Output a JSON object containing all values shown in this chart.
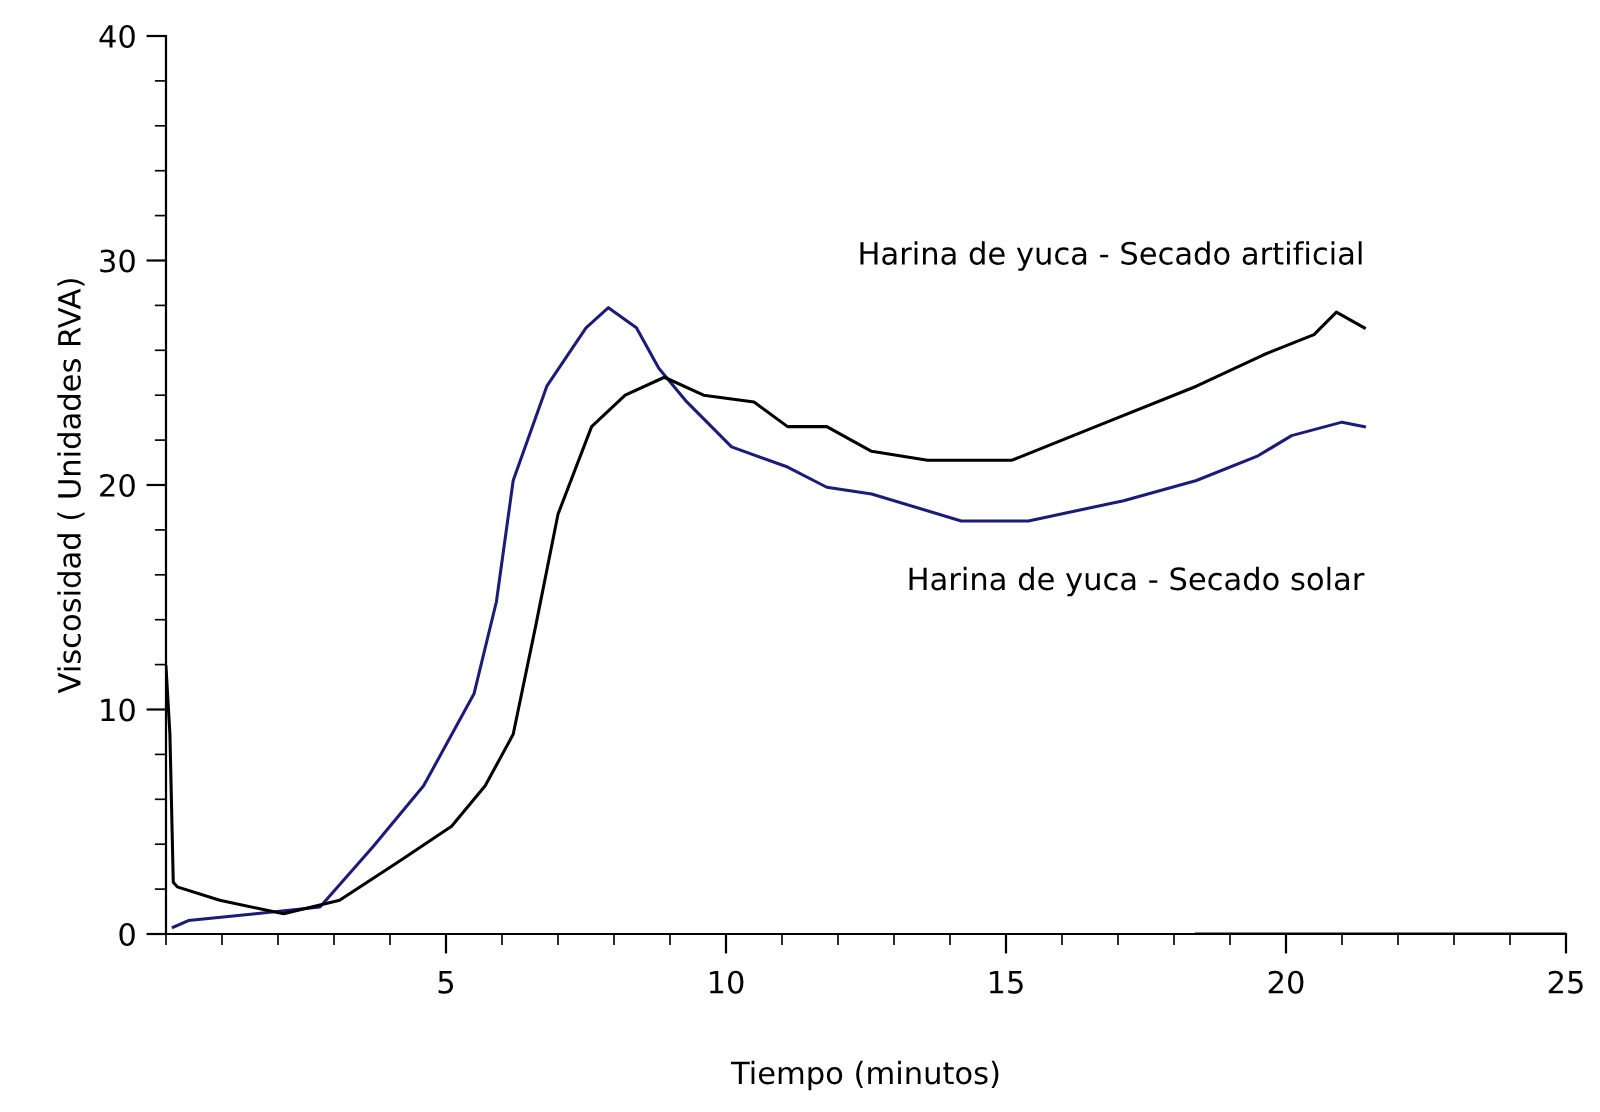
{
  "chart_data": {
    "type": "line",
    "xlabel": "Tiempo (minutos)",
    "ylabel": "Viscosidad ( Unidades RVA)",
    "xlim": [
      0,
      25
    ],
    "ylim": [
      0,
      40
    ],
    "xticks": [
      {
        "value": 0,
        "label": null
      },
      {
        "value": 1,
        "label": null
      },
      {
        "value": 2,
        "label": null
      },
      {
        "value": 3,
        "label": null
      },
      {
        "value": 4,
        "label": null
      },
      5,
      {
        "value": 6,
        "label": null
      },
      {
        "value": 7,
        "label": null
      },
      {
        "value": 8,
        "label": null
      },
      {
        "value": 9,
        "label": null
      },
      10,
      {
        "value": 11,
        "label": null
      },
      {
        "value": 12,
        "label": null
      },
      {
        "value": 13,
        "label": null
      },
      {
        "value": 14,
        "label": null
      },
      15,
      {
        "value": 16,
        "label": null
      },
      {
        "value": 17,
        "label": null
      },
      {
        "value": 18,
        "label": null
      },
      {
        "value": 19,
        "label": null
      },
      20,
      {
        "value": 21,
        "label": null
      },
      {
        "value": 22,
        "label": null
      },
      {
        "value": 23,
        "label": null
      },
      {
        "value": 24,
        "label": null
      },
      25
    ],
    "yticks": [
      0,
      {
        "value": 2,
        "label": null
      },
      {
        "value": 4,
        "label": null
      },
      {
        "value": 6,
        "label": null
      },
      {
        "value": 8,
        "label": null
      },
      10,
      {
        "value": 12,
        "label": null
      },
      {
        "value": 14,
        "label": null
      },
      {
        "value": 16,
        "label": null
      },
      {
        "value": 18,
        "label": null
      },
      20,
      {
        "value": 22,
        "label": null
      },
      {
        "value": 24,
        "label": null
      },
      {
        "value": 26,
        "label": null
      },
      {
        "value": 28,
        "label": null
      },
      30,
      {
        "value": 32,
        "label": null
      },
      {
        "value": 34,
        "label": null
      },
      {
        "value": 36,
        "label": null
      },
      {
        "value": 38,
        "label": null
      },
      40
    ],
    "grid": false,
    "marker": "none",
    "line_style": "solid",
    "series": [
      {
        "name": "Harina de yuca - Secado solar",
        "color": "#1c1c78",
        "x": [
          0.13,
          0.4,
          1.6,
          2.75,
          3.7,
          4.6,
          5.5,
          5.9,
          6.2,
          6.8,
          7.5,
          7.9,
          8.4,
          8.8,
          9.3,
          10.1,
          11.1,
          11.8,
          12.6,
          14.2,
          15.4,
          17.1,
          18.4,
          19.5,
          20.1,
          21.0,
          21.4
        ],
        "values": [
          0.3,
          0.6,
          0.9,
          1.2,
          3.9,
          6.6,
          10.7,
          14.8,
          20.2,
          24.4,
          27.0,
          27.9,
          27.0,
          25.2,
          23.7,
          21.7,
          20.8,
          19.9,
          19.6,
          18.4,
          18.4,
          19.3,
          20.2,
          21.3,
          22.2,
          22.8,
          22.6
        ]
      },
      {
        "name": "Harina de yuca - Secado artificial",
        "color": "#000000",
        "x": [
          0,
          0.07,
          0.13,
          0.2,
          0.96,
          2.1,
          3.1,
          4.2,
          5.1,
          5.7,
          6.2,
          6.6,
          7.0,
          7.6,
          8.2,
          8.9,
          9.6,
          10.5,
          11.1,
          11.8,
          12.6,
          13.6,
          15.1,
          16.6,
          18.4,
          19.6,
          20.5,
          20.9,
          21.4
        ],
        "values": [
          11.9,
          8.9,
          2.3,
          2.1,
          1.5,
          0.9,
          1.5,
          3.3,
          4.8,
          6.6,
          8.9,
          13.7,
          18.7,
          22.6,
          24.0,
          24.8,
          24.0,
          23.7,
          22.6,
          22.6,
          21.5,
          21.1,
          21.1,
          22.6,
          24.4,
          25.8,
          26.7,
          27.7,
          27.0
        ]
      },
      {
        "color": "#000000",
        "x": [
          18.4,
          25.0
        ],
        "values": [
          0,
          0
        ]
      }
    ]
  }
}
